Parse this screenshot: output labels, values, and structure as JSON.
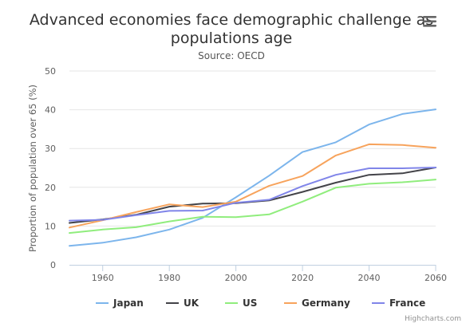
{
  "chart_data": {
    "type": "line",
    "title": "Advanced economies face demographic challenge as populations age",
    "title_lines": [
      "Advanced economies face demographic challenge as",
      "populations age"
    ],
    "subtitle": "Source: OECD",
    "xlabel": "",
    "ylabel": "Proportion of population over 65 (%)",
    "xlim": [
      1950,
      2060
    ],
    "ylim": [
      0,
      50
    ],
    "x_ticks": [
      1960,
      1980,
      2000,
      2020,
      2040,
      2060
    ],
    "y_ticks": [
      0,
      10,
      20,
      30,
      40,
      50
    ],
    "grid": "horizontal",
    "legend_position": "bottom-center",
    "x": [
      1950,
      1960,
      1970,
      1980,
      1990,
      2000,
      2010,
      2020,
      2030,
      2040,
      2050,
      2060
    ],
    "series": [
      {
        "name": "Japan",
        "color": "#7cb5ec",
        "values": [
          4.9,
          5.7,
          7.1,
          9.1,
          12.1,
          17.4,
          23.0,
          29.1,
          31.6,
          36.2,
          38.9,
          40.1
        ]
      },
      {
        "name": "UK",
        "color": "#434348",
        "values": [
          10.8,
          11.7,
          12.9,
          15.0,
          15.8,
          15.9,
          16.6,
          18.8,
          21.2,
          23.2,
          23.6,
          25.1
        ]
      },
      {
        "name": "US",
        "color": "#90ed7d",
        "values": [
          8.2,
          9.1,
          9.7,
          11.2,
          12.4,
          12.3,
          13.0,
          16.3,
          19.9,
          20.9,
          21.3,
          22.0
        ]
      },
      {
        "name": "Germany",
        "color": "#f7a35c",
        "values": [
          9.6,
          11.5,
          13.6,
          15.6,
          14.9,
          16.3,
          20.4,
          22.9,
          28.2,
          31.1,
          30.9,
          30.2
        ]
      },
      {
        "name": "France",
        "color": "#8085e9",
        "values": [
          11.4,
          11.6,
          12.8,
          13.9,
          14.0,
          16.0,
          16.8,
          20.3,
          23.2,
          24.9,
          24.9,
          25.1
        ]
      }
    ],
    "credits": "Highcharts.com"
  }
}
